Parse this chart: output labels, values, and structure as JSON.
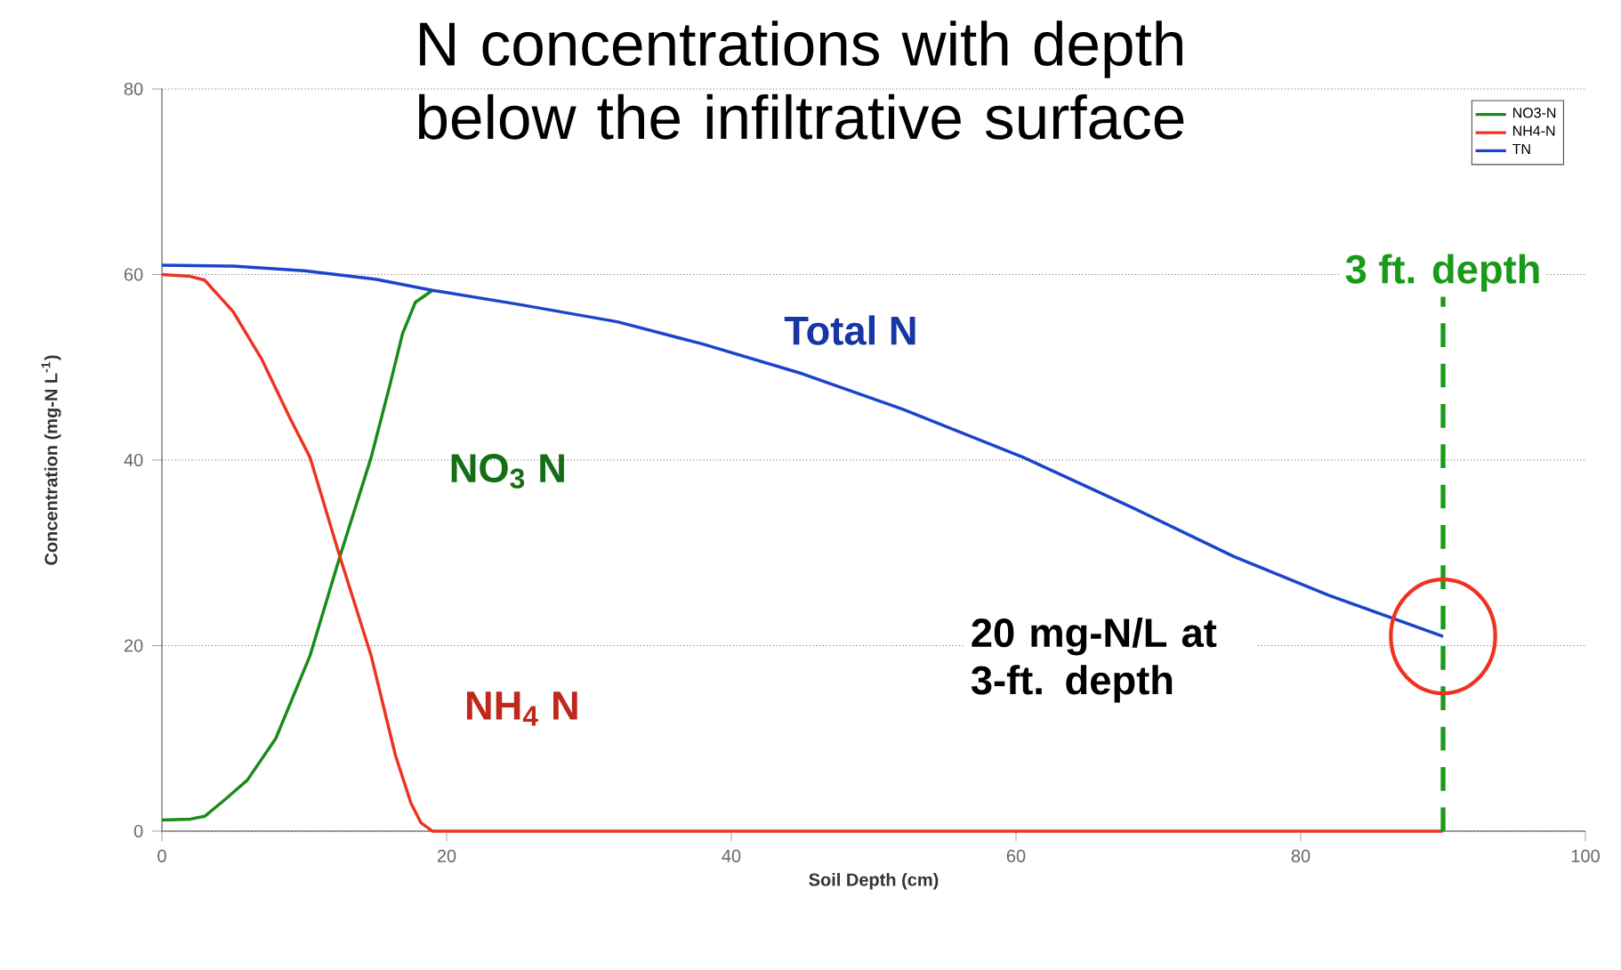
{
  "chart_data": {
    "type": "line",
    "title": "N concentrations with depth below the infiltrative surface",
    "xlabel": "Soil Depth (cm)",
    "ylabel": "Concentration (mg-N L$^{-1}$)",
    "xlim": [
      0,
      100
    ],
    "xticks": [
      0,
      20,
      40,
      60,
      80,
      100
    ],
    "ylim": [
      0,
      80
    ],
    "yticks": [
      0,
      20,
      40,
      60,
      80
    ],
    "grid": "y",
    "legend": "top right",
    "line_style": "solid",
    "series": [
      {
        "name": "NO3-N",
        "color": "#1a8a1a",
        "x": [
          0,
          2,
          3,
          4.5,
          6,
          8,
          10.4,
          12.5,
          14.7,
          16,
          16.9,
          17.8,
          19
        ],
        "values": [
          1.2,
          1.3,
          1.6,
          3.5,
          5.5,
          10,
          18.9,
          29.6,
          40.3,
          48,
          53.6,
          57,
          58.3
        ]
      },
      {
        "name": "NH4-N",
        "color": "#ee3322",
        "x": [
          0,
          2,
          3,
          5,
          7,
          9,
          10.4,
          12.5,
          14.7,
          16.4,
          17.5,
          18.2,
          19,
          90
        ],
        "values": [
          60,
          59.8,
          59.4,
          56,
          50.9,
          44.5,
          40.3,
          29.6,
          18.9,
          8.2,
          3,
          0.9,
          0,
          0
        ]
      },
      {
        "name": "TN",
        "color": "#1a44cc",
        "x": [
          0,
          5,
          10,
          15,
          19,
          25,
          32,
          38,
          45,
          52,
          60.5,
          68,
          75.3,
          82,
          90
        ],
        "values": [
          61,
          60.9,
          60.4,
          59.5,
          58.3,
          56.8,
          54.9,
          52.5,
          49.3,
          45.5,
          40.3,
          35,
          29.6,
          25.4,
          21
        ]
      }
    ],
    "ref_lines": [
      {
        "axis": "x",
        "value": 90,
        "label": "3 ft. depth",
        "color": "#1a9a1a",
        "line_style": "dashed"
      }
    ],
    "annotations": [
      "Total N",
      "NO$_{3}$ N",
      "NH$_{4}$ N",
      "20 mg-N/L at 3-ft. depth"
    ]
  }
}
